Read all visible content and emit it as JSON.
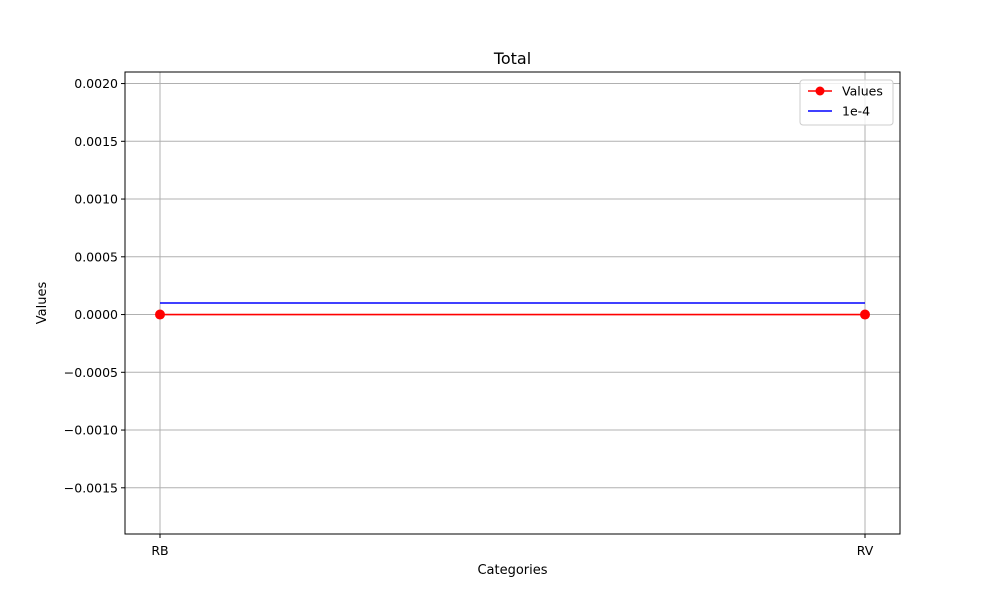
{
  "chart_data": {
    "type": "line",
    "title": "Total",
    "xlabel": "Categories",
    "ylabel": "Values",
    "categories": [
      "RB",
      "RV"
    ],
    "ylim": [
      -0.0019,
      0.0021
    ],
    "yticks": [
      -0.0015,
      -0.001,
      -0.0005,
      0.0,
      0.0005,
      0.001,
      0.0015,
      0.002
    ],
    "ytick_labels": [
      "−0.0015",
      "−0.0010",
      "−0.0005",
      "0.0000",
      "0.0005",
      "0.0010",
      "0.0015",
      "0.0020"
    ],
    "grid": true,
    "legend_position": "top-right",
    "series": [
      {
        "name": "Values",
        "values": [
          0,
          0
        ],
        "color": "#ff0000",
        "marker": "circle"
      },
      {
        "name": "1e-4",
        "values": [
          0.0001,
          0.0001
        ],
        "color": "#0000ff",
        "marker": "none"
      }
    ]
  }
}
